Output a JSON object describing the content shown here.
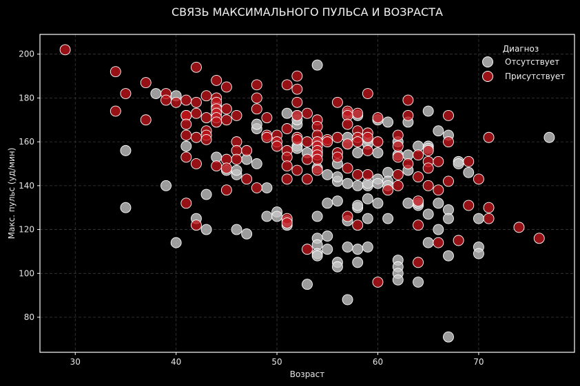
{
  "chart_data": {
    "type": "scatter",
    "title": "СВЯЗЬ МАКСИМАЛЬНОГО ПУЛЬСА И ВОЗРАСТА",
    "xlabel": "Возраст",
    "ylabel": "Макс. пульс (уд/мин)",
    "xlim": [
      26.5,
      79.5
    ],
    "ylim": [
      64,
      209
    ],
    "xticks": [
      30,
      40,
      50,
      60,
      70
    ],
    "yticks": [
      80,
      100,
      120,
      140,
      160,
      180,
      200
    ],
    "grid": true,
    "legend_title": "Диагноз",
    "legend_position": "top-right",
    "series": [
      {
        "name": "Отсутствует",
        "color": "#c8c8c8",
        "points": [
          [
            35,
            156
          ],
          [
            35,
            130
          ],
          [
            38,
            182
          ],
          [
            39,
            140
          ],
          [
            40,
            181
          ],
          [
            40,
            114
          ],
          [
            41,
            158
          ],
          [
            42,
            125
          ],
          [
            43,
            136
          ],
          [
            43,
            120
          ],
          [
            44,
            153
          ],
          [
            44,
            176
          ],
          [
            44,
            173
          ],
          [
            45,
            147
          ],
          [
            46,
            145
          ],
          [
            46,
            147
          ],
          [
            46,
            120
          ],
          [
            47,
            152
          ],
          [
            47,
            118
          ],
          [
            48,
            150
          ],
          [
            48,
            166
          ],
          [
            48,
            168
          ],
          [
            49,
            139
          ],
          [
            49,
            126
          ],
          [
            50,
            128
          ],
          [
            50,
            126
          ],
          [
            51,
            173
          ],
          [
            51,
            124
          ],
          [
            51,
            122
          ],
          [
            52,
            168
          ],
          [
            52,
            170
          ],
          [
            52,
            158
          ],
          [
            52,
            157
          ],
          [
            52,
            172
          ],
          [
            53,
            155
          ],
          [
            53,
            95
          ],
          [
            54,
            195
          ],
          [
            54,
            160
          ],
          [
            54,
            155
          ],
          [
            54,
            148
          ],
          [
            54,
            126
          ],
          [
            54,
            116
          ],
          [
            54,
            113
          ],
          [
            54,
            109
          ],
          [
            54,
            108
          ],
          [
            55,
            145
          ],
          [
            55,
            132
          ],
          [
            55,
            117
          ],
          [
            55,
            111
          ],
          [
            56,
            150
          ],
          [
            56,
            142
          ],
          [
            56,
            144
          ],
          [
            56,
            133
          ],
          [
            56,
            105
          ],
          [
            56,
            103
          ],
          [
            57,
            173
          ],
          [
            57,
            162
          ],
          [
            57,
            159
          ],
          [
            57,
            141
          ],
          [
            57,
            124
          ],
          [
            57,
            112
          ],
          [
            57,
            88
          ],
          [
            58,
            172
          ],
          [
            58,
            155
          ],
          [
            58,
            140
          ],
          [
            58,
            130
          ],
          [
            58,
            131
          ],
          [
            58,
            111
          ],
          [
            58,
            105
          ],
          [
            59,
            161
          ],
          [
            59,
            159
          ],
          [
            59,
            140
          ],
          [
            59,
            141
          ],
          [
            59,
            134
          ],
          [
            59,
            125
          ],
          [
            59,
            112
          ],
          [
            60,
            170
          ],
          [
            60,
            155
          ],
          [
            60,
            143
          ],
          [
            60,
            141
          ],
          [
            60,
            132
          ],
          [
            61,
            169
          ],
          [
            61,
            146
          ],
          [
            61,
            142
          ],
          [
            61,
            140
          ],
          [
            61,
            125
          ],
          [
            62,
            160
          ],
          [
            62,
            154
          ],
          [
            62,
            106
          ],
          [
            62,
            103
          ],
          [
            62,
            100
          ],
          [
            62,
            97
          ],
          [
            63,
            169
          ],
          [
            63,
            154
          ],
          [
            63,
            147
          ],
          [
            63,
            132
          ],
          [
            64,
            158
          ],
          [
            64,
            131
          ],
          [
            64,
            132
          ],
          [
            64,
            96
          ],
          [
            65,
            174
          ],
          [
            65,
            158
          ],
          [
            65,
            157
          ],
          [
            65,
            127
          ],
          [
            65,
            114
          ],
          [
            66,
            165
          ],
          [
            66,
            132
          ],
          [
            66,
            120
          ],
          [
            67,
            163
          ],
          [
            67,
            129
          ],
          [
            67,
            125
          ],
          [
            67,
            108
          ],
          [
            67,
            71
          ],
          [
            68,
            151
          ],
          [
            68,
            150
          ],
          [
            69,
            146
          ],
          [
            70,
            125
          ],
          [
            70,
            112
          ],
          [
            70,
            109
          ],
          [
            77,
            162
          ]
        ]
      },
      {
        "name": "Присутствует",
        "color": "#c0161c",
        "points": [
          [
            29,
            202
          ],
          [
            34,
            192
          ],
          [
            34,
            174
          ],
          [
            35,
            182
          ],
          [
            37,
            187
          ],
          [
            37,
            170
          ],
          [
            39,
            182
          ],
          [
            39,
            179
          ],
          [
            40,
            178
          ],
          [
            41,
            179
          ],
          [
            41,
            172
          ],
          [
            41,
            172
          ],
          [
            41,
            168
          ],
          [
            41,
            163
          ],
          [
            41,
            153
          ],
          [
            41,
            132
          ],
          [
            42,
            194
          ],
          [
            42,
            178
          ],
          [
            42,
            173
          ],
          [
            42,
            162
          ],
          [
            42,
            150
          ],
          [
            42,
            122
          ],
          [
            43,
            181
          ],
          [
            43,
            171
          ],
          [
            43,
            165
          ],
          [
            43,
            163
          ],
          [
            43,
            161
          ],
          [
            44,
            188
          ],
          [
            44,
            180
          ],
          [
            44,
            178
          ],
          [
            44,
            175
          ],
          [
            44,
            173
          ],
          [
            44,
            171
          ],
          [
            44,
            169
          ],
          [
            44,
            149
          ],
          [
            45,
            185
          ],
          [
            45,
            175
          ],
          [
            45,
            170
          ],
          [
            45,
            152
          ],
          [
            45,
            148
          ],
          [
            45,
            138
          ],
          [
            46,
            172
          ],
          [
            46,
            160
          ],
          [
            46,
            156
          ],
          [
            46,
            152
          ],
          [
            47,
            156
          ],
          [
            47,
            143
          ],
          [
            48,
            186
          ],
          [
            48,
            180
          ],
          [
            48,
            175
          ],
          [
            48,
            139
          ],
          [
            49,
            171
          ],
          [
            49,
            163
          ],
          [
            49,
            162
          ],
          [
            50,
            163
          ],
          [
            50,
            160
          ],
          [
            50,
            158
          ],
          [
            51,
            186
          ],
          [
            51,
            166
          ],
          [
            51,
            156
          ],
          [
            51,
            153
          ],
          [
            51,
            149
          ],
          [
            51,
            143
          ],
          [
            51,
            125
          ],
          [
            51,
            123
          ],
          [
            52,
            190
          ],
          [
            52,
            184
          ],
          [
            52,
            178
          ],
          [
            52,
            172
          ],
          [
            52,
            162
          ],
          [
            52,
            161
          ],
          [
            52,
            147
          ],
          [
            53,
            173
          ],
          [
            53,
            160
          ],
          [
            53,
            152
          ],
          [
            53,
            143
          ],
          [
            53,
            111
          ],
          [
            54,
            170
          ],
          [
            54,
            167
          ],
          [
            54,
            163
          ],
          [
            54,
            160
          ],
          [
            54,
            158
          ],
          [
            54,
            156
          ],
          [
            54,
            154
          ],
          [
            54,
            152
          ],
          [
            54,
            147
          ],
          [
            55,
            161
          ],
          [
            55,
            160
          ],
          [
            56,
            178
          ],
          [
            56,
            162
          ],
          [
            56,
            155
          ],
          [
            56,
            153
          ],
          [
            57,
            174
          ],
          [
            57,
            172
          ],
          [
            57,
            168
          ],
          [
            57,
            159
          ],
          [
            57,
            148
          ],
          [
            57,
            126
          ],
          [
            58,
            173
          ],
          [
            58,
            165
          ],
          [
            58,
            162
          ],
          [
            58,
            160
          ],
          [
            58,
            145
          ],
          [
            58,
            122
          ],
          [
            59,
            182
          ],
          [
            59,
            164
          ],
          [
            59,
            162
          ],
          [
            59,
            156
          ],
          [
            59,
            145
          ],
          [
            60,
            171
          ],
          [
            60,
            160
          ],
          [
            60,
            96
          ],
          [
            61,
            138
          ],
          [
            62,
            163
          ],
          [
            62,
            158
          ],
          [
            62,
            153
          ],
          [
            62,
            145
          ],
          [
            62,
            140
          ],
          [
            63,
            179
          ],
          [
            63,
            172
          ],
          [
            63,
            150
          ],
          [
            64,
            154
          ],
          [
            64,
            144
          ],
          [
            64,
            133
          ],
          [
            64,
            122
          ],
          [
            64,
            105
          ],
          [
            65,
            156
          ],
          [
            65,
            151
          ],
          [
            65,
            148
          ],
          [
            65,
            140
          ],
          [
            66,
            151
          ],
          [
            66,
            138
          ],
          [
            66,
            114
          ],
          [
            67,
            172
          ],
          [
            67,
            160
          ],
          [
            67,
            142
          ],
          [
            68,
            115
          ],
          [
            69,
            151
          ],
          [
            69,
            131
          ],
          [
            70,
            143
          ],
          [
            71,
            162
          ],
          [
            71,
            130
          ],
          [
            71,
            125
          ],
          [
            74,
            121
          ],
          [
            76,
            116
          ]
        ]
      }
    ]
  }
}
